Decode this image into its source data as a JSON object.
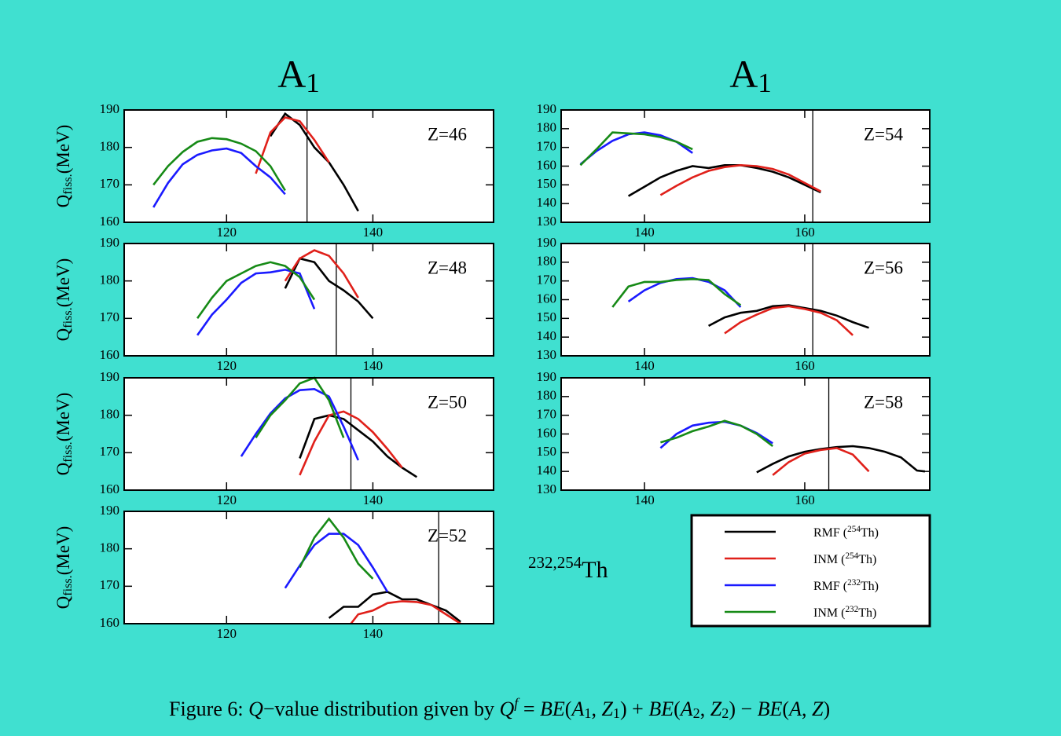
{
  "titles": [
    {
      "text": "A",
      "sub": "1"
    },
    {
      "text": "A",
      "sub": "1"
    }
  ],
  "legend": [
    {
      "prefix": "RMF (",
      "sup": "254",
      "suffix": "Th)",
      "color": "#000000"
    },
    {
      "prefix": "INM (",
      "sup": "254",
      "suffix": "Th)",
      "color": "#e0201a"
    },
    {
      "prefix": "RMF (",
      "sup": "232",
      "suffix": "Th)",
      "color": "#1a1aff"
    },
    {
      "prefix": "INM (",
      "sup": "232",
      "suffix": "Th)",
      "color": "#168a16"
    }
  ],
  "annotation": {
    "sup": "232,254",
    "text": "Th"
  },
  "caption": [
    {
      "text": "Figure 6: ",
      "style": "normal"
    },
    {
      "text": "Q",
      "style": "italic"
    },
    {
      "text": "−value distribution given by ",
      "style": "normal"
    },
    {
      "text": "Q",
      "style": "italic"
    },
    {
      "text": "f",
      "style": "sup"
    },
    {
      "text": " = ",
      "style": "normal"
    },
    {
      "text": "BE",
      "style": "italic"
    },
    {
      "text": "(",
      "style": "normal"
    },
    {
      "text": "A",
      "style": "italic"
    },
    {
      "text": "1",
      "style": "sub"
    },
    {
      "text": ", ",
      "style": "normal"
    },
    {
      "text": "Z",
      "style": "italic"
    },
    {
      "text": "1",
      "style": "sub"
    },
    {
      "text": ") + ",
      "style": "normal"
    },
    {
      "text": "BE",
      "style": "italic"
    },
    {
      "text": "(",
      "style": "normal"
    },
    {
      "text": "A",
      "style": "italic"
    },
    {
      "text": "2",
      "style": "sub"
    },
    {
      "text": ", ",
      "style": "normal"
    },
    {
      "text": "Z",
      "style": "italic"
    },
    {
      "text": "2",
      "style": "sub"
    },
    {
      "text": ") − ",
      "style": "normal"
    },
    {
      "text": "BE",
      "style": "italic"
    },
    {
      "text": "(",
      "style": "normal"
    },
    {
      "text": "A",
      "style": "italic"
    },
    {
      "text": ", ",
      "style": "normal"
    },
    {
      "text": "Z",
      "style": "italic"
    },
    {
      "text": ")",
      "style": "normal"
    }
  ],
  "chart_data": [
    {
      "type": "line",
      "annotation": "Z=46",
      "ylabel": {
        "text": "Q",
        "sub": "fiss.",
        "unit": "(MeV)"
      },
      "xlim": [
        106,
        156.5
      ],
      "ylim": [
        160,
        190
      ],
      "xticks": [
        120,
        140
      ],
      "yticks": [
        160,
        170,
        180,
        190
      ],
      "vline": 131,
      "series": [
        {
          "x": [
            126,
            128,
            130,
            132,
            134,
            136,
            138
          ],
          "values": [
            183,
            189,
            186,
            180,
            176,
            170,
            163
          ]
        },
        {
          "x": [
            124,
            126,
            128,
            130,
            132,
            134
          ],
          "values": [
            173,
            184,
            188,
            187,
            182,
            176
          ]
        },
        {
          "x": [
            110,
            112,
            114,
            116,
            118,
            120,
            122,
            124,
            126,
            128
          ],
          "values": [
            164,
            170.5,
            175.5,
            178,
            179.2,
            179.7,
            178.5,
            175,
            172,
            167.5
          ]
        },
        {
          "x": [
            110,
            112,
            114,
            116,
            118,
            120,
            122,
            124,
            126,
            128
          ],
          "values": [
            170,
            175,
            178.8,
            181.5,
            182.5,
            182.2,
            181,
            179,
            175,
            168.5
          ]
        }
      ]
    },
    {
      "type": "line",
      "annotation": "Z=48",
      "ylabel": {
        "text": "Q",
        "sub": "fiss.",
        "unit": "(MeV)"
      },
      "xlim": [
        106,
        156.5
      ],
      "ylim": [
        160,
        190
      ],
      "xticks": [
        120,
        140
      ],
      "yticks": [
        160,
        170,
        180,
        190
      ],
      "vline": 135,
      "series": [
        {
          "x": [
            128,
            130,
            132,
            134,
            136,
            138,
            140
          ],
          "values": [
            178,
            186,
            185,
            180,
            177.5,
            174.5,
            170
          ]
        },
        {
          "x": [
            128,
            130,
            132,
            134,
            136,
            138
          ],
          "values": [
            180,
            186,
            188.2,
            186.7,
            182,
            175.5
          ]
        },
        {
          "x": [
            116,
            118,
            120,
            122,
            124,
            126,
            128,
            130,
            132
          ],
          "values": [
            165.5,
            171,
            175,
            179.5,
            182,
            182.3,
            183,
            182,
            172.5
          ]
        },
        {
          "x": [
            116,
            118,
            120,
            122,
            124,
            126,
            128,
            130,
            132
          ],
          "values": [
            170,
            175.5,
            180,
            182,
            184,
            185,
            184,
            181,
            175
          ]
        }
      ]
    },
    {
      "type": "line",
      "annotation": "Z=50",
      "ylabel": {
        "text": "Q",
        "sub": "fiss.",
        "unit": "(MeV)"
      },
      "xlim": [
        106,
        156.5
      ],
      "ylim": [
        160,
        190
      ],
      "xticks": [
        120,
        140
      ],
      "yticks": [
        160,
        170,
        180,
        190
      ],
      "vline": 137,
      "series": [
        {
          "x": [
            130,
            132,
            134,
            136,
            138,
            140,
            142,
            144,
            146
          ],
          "values": [
            168.5,
            179,
            180,
            179,
            176,
            173,
            169,
            166,
            163.5
          ]
        },
        {
          "x": [
            130,
            132,
            134,
            136,
            138,
            140,
            142,
            144
          ],
          "values": [
            164,
            173,
            180,
            181,
            179,
            175.5,
            171,
            166
          ]
        },
        {
          "x": [
            122,
            124,
            126,
            128,
            130,
            132,
            134,
            136,
            138
          ],
          "values": [
            169,
            175,
            180.5,
            184.5,
            186.7,
            187,
            185,
            177,
            168
          ]
        },
        {
          "x": [
            124,
            126,
            128,
            130,
            132,
            134,
            136
          ],
          "values": [
            174,
            180,
            184,
            188.5,
            190,
            184,
            174
          ]
        }
      ]
    },
    {
      "type": "line",
      "annotation": "Z=52",
      "ylabel": {
        "text": "Q",
        "sub": "fiss.",
        "unit": "(MeV)"
      },
      "xlim": [
        106,
        156.5
      ],
      "ylim": [
        160,
        190
      ],
      "xticks": [
        120,
        140
      ],
      "yticks": [
        160,
        170,
        180,
        190
      ],
      "vline": 149,
      "series": [
        {
          "x": [
            134,
            136,
            138,
            140,
            142,
            144,
            146,
            148,
            150,
            152
          ],
          "values": [
            161.5,
            164.5,
            164.5,
            167.8,
            168.5,
            166.5,
            166.5,
            165,
            163.5,
            160.5
          ]
        },
        {
          "x": [
            137,
            138,
            140,
            142,
            144,
            146,
            148,
            150,
            152
          ],
          "values": [
            160,
            162.5,
            163.5,
            165.5,
            166,
            165.8,
            165,
            162.5,
            160
          ]
        },
        {
          "x": [
            128,
            130,
            132,
            134,
            136,
            138,
            140,
            142
          ],
          "values": [
            169.5,
            175.5,
            181,
            184,
            184,
            181,
            175,
            168.5
          ]
        },
        {
          "x": [
            130,
            132,
            134,
            136,
            138,
            140
          ],
          "values": [
            175,
            183,
            188,
            183,
            176,
            172
          ]
        }
      ]
    },
    {
      "type": "line",
      "annotation": "Z=54",
      "xlim": [
        129.6,
        175.6
      ],
      "ylim": [
        130,
        190
      ],
      "xticks": [
        140,
        160
      ],
      "yticks": [
        130,
        140,
        150,
        160,
        170,
        180,
        190
      ],
      "vline": 161,
      "series": [
        {
          "x": [
            138,
            140,
            142,
            144,
            146,
            148,
            150,
            152,
            154,
            156,
            158,
            160,
            162
          ],
          "values": [
            144,
            149,
            154,
            157.5,
            160,
            159,
            160.5,
            160.5,
            159,
            157,
            154,
            150,
            146
          ]
        },
        {
          "x": [
            142,
            144,
            146,
            148,
            150,
            152,
            154,
            156,
            158,
            160,
            162
          ],
          "values": [
            144.5,
            149.5,
            154,
            157.5,
            159.5,
            160.5,
            160,
            158.5,
            155.5,
            151,
            146.5
          ]
        },
        {
          "x": [
            132,
            134,
            136,
            138,
            140,
            142,
            144,
            146
          ],
          "values": [
            161,
            168,
            173.5,
            177,
            178,
            176.5,
            173,
            167
          ]
        },
        {
          "x": [
            132,
            134,
            136,
            138,
            140,
            142,
            144,
            146
          ],
          "values": [
            160.5,
            169,
            178,
            177.5,
            177,
            175.5,
            173,
            169
          ]
        }
      ]
    },
    {
      "type": "line",
      "annotation": "Z=56",
      "xlim": [
        129.6,
        175.6
      ],
      "ylim": [
        130,
        190
      ],
      "xticks": [
        140,
        160
      ],
      "yticks": [
        130,
        140,
        150,
        160,
        170,
        180,
        190
      ],
      "vline": 161,
      "series": [
        {
          "x": [
            148,
            150,
            152,
            154,
            156,
            158,
            160,
            162,
            164,
            166,
            168
          ],
          "values": [
            146,
            150.5,
            153,
            154,
            156.5,
            157,
            155.5,
            154,
            151.5,
            148,
            145
          ]
        },
        {
          "x": [
            150,
            152,
            154,
            156,
            158,
            160,
            162,
            164,
            166
          ],
          "values": [
            142,
            148,
            152,
            155.5,
            156.5,
            155,
            153,
            149,
            141
          ]
        },
        {
          "x": [
            138,
            140,
            142,
            144,
            146,
            148,
            150,
            152
          ],
          "values": [
            159,
            165,
            169,
            171,
            171.5,
            169.5,
            165,
            156
          ]
        },
        {
          "x": [
            136,
            138,
            140,
            142,
            144,
            146,
            148,
            150,
            152
          ],
          "values": [
            156,
            167,
            169.5,
            169.5,
            170.5,
            171,
            170.5,
            163,
            157
          ]
        }
      ]
    },
    {
      "type": "line",
      "annotation": "Z=58",
      "xlim": [
        129.6,
        175.6
      ],
      "ylim": [
        130,
        190
      ],
      "xticks": [
        140,
        160
      ],
      "yticks": [
        130,
        140,
        150,
        160,
        170,
        180,
        190
      ],
      "vline": 163,
      "series": [
        {
          "x": [
            154,
            156,
            158,
            160,
            162,
            164,
            166,
            168,
            170,
            172,
            174,
            175
          ],
          "values": [
            139.5,
            144,
            148,
            150.5,
            152,
            153,
            153.5,
            152.5,
            150.5,
            147.5,
            140.5,
            140
          ]
        },
        {
          "x": [
            156,
            158,
            160,
            162,
            164,
            166,
            168
          ],
          "values": [
            138,
            145,
            149.5,
            151.5,
            152.5,
            149,
            140
          ]
        },
        {
          "x": [
            142,
            144,
            146,
            148,
            150,
            152,
            154,
            156
          ],
          "values": [
            152.5,
            160,
            164.5,
            166,
            166.5,
            164.5,
            160.5,
            155
          ]
        },
        {
          "x": [
            142,
            144,
            146,
            148,
            150,
            152,
            154,
            156
          ],
          "values": [
            155.5,
            158,
            161.5,
            164,
            167,
            164.5,
            160,
            153.5
          ]
        }
      ]
    }
  ]
}
